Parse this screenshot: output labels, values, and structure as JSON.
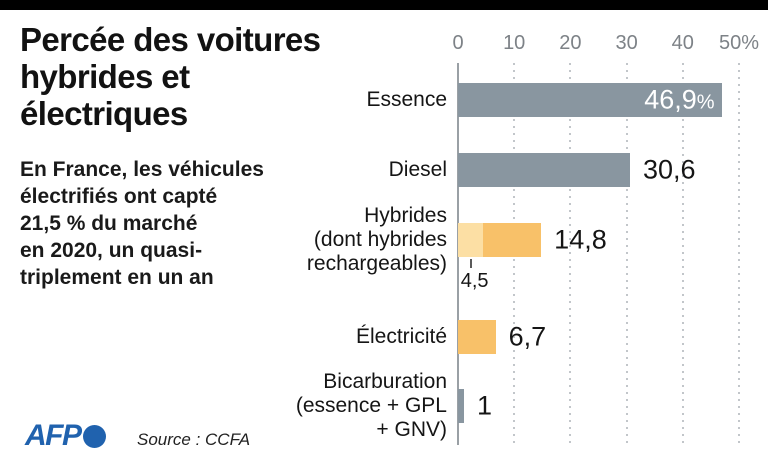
{
  "page": {
    "background": "#ffffff",
    "top_bar_color": "#000000"
  },
  "header": {
    "title_lines": [
      "Percée des voitures",
      "hybrides et",
      "électriques"
    ],
    "subtitle_lines": [
      "En France, les véhicules",
      "électrifiés ont capté",
      "21,5 % du marché",
      "en 2020, un quasi-",
      "triplement en un an"
    ]
  },
  "footer": {
    "logo_text": "AFP",
    "logo_color": "#2062ae",
    "source": "Source : CCFA"
  },
  "chart_data": {
    "type": "bar",
    "orientation": "horizontal",
    "title": "",
    "xlabel": "",
    "ylabel": "",
    "xlim": [
      0,
      50
    ],
    "grid": "vertical-dotted",
    "x_ticks": [
      {
        "value": 0,
        "label": "0"
      },
      {
        "value": 10,
        "label": "10"
      },
      {
        "value": 20,
        "label": "20"
      },
      {
        "value": 30,
        "label": "30"
      },
      {
        "value": 40,
        "label": "40"
      },
      {
        "value": 50,
        "label": "50%"
      }
    ],
    "colors": {
      "gray": "#8996a0",
      "orange": "#f8c169",
      "light_orange": "#fcdfa4"
    },
    "rows": [
      {
        "name": "essence",
        "label_lines": [
          "Essence"
        ],
        "value": 46.9,
        "value_label": "46,9",
        "value_suffix": "%",
        "color_key": "gray",
        "value_inside": true
      },
      {
        "name": "diesel",
        "label_lines": [
          "Diesel"
        ],
        "value": 30.6,
        "value_label": "30,6",
        "color_key": "gray"
      },
      {
        "name": "hybrides",
        "label_lines": [
          "Hybrides",
          "(dont hybrides",
          "rechargeables)"
        ],
        "value": 14.8,
        "value_label": "14,8",
        "color_key": "orange",
        "segment": {
          "value": 4.5,
          "label": "4,5",
          "color_key": "light_orange"
        }
      },
      {
        "name": "electricite",
        "label_lines": [
          "Électricité"
        ],
        "value": 6.7,
        "value_label": "6,7",
        "color_key": "orange"
      },
      {
        "name": "bicarburation",
        "label_lines": [
          "Bicarburation",
          "(essence + GPL",
          "+ GNV)"
        ],
        "value": 1,
        "value_label": "1",
        "color_key": "gray"
      }
    ]
  }
}
